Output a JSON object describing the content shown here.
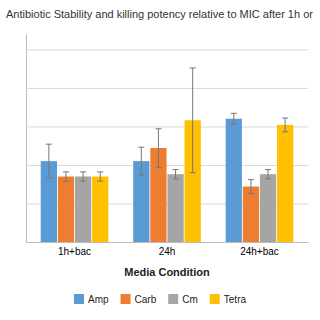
{
  "chart_data": {
    "type": "bar",
    "title": "Antibiotic Stability and killing potency relative to MIC after 1h or",
    "xlabel": "Media Condition",
    "categories": [
      "1h+bac",
      "24h",
      "24h+bac"
    ],
    "series": [
      {
        "name": "Amp",
        "color": "#5B9BD5",
        "values": [
          1.05,
          1.05,
          1.6
        ],
        "errors": [
          0.22,
          0.18,
          0.07
        ]
      },
      {
        "name": "Carb",
        "color": "#ED7D31",
        "values": [
          0.85,
          1.22,
          0.72
        ],
        "errors": [
          0.06,
          0.25,
          0.09
        ]
      },
      {
        "name": "Cm",
        "color": "#A5A5A5",
        "values": [
          0.85,
          0.88,
          0.88
        ],
        "errors": [
          0.06,
          0.06,
          0.06
        ]
      },
      {
        "name": "Tetra",
        "color": "#FFC000",
        "values": [
          0.85,
          1.58,
          1.52
        ],
        "errors": [
          0.06,
          0.68,
          0.09
        ]
      }
    ],
    "ylim": [
      0,
      2.7
    ],
    "yticks": [
      0.5,
      1.0,
      1.5,
      2.0,
      2.5
    ],
    "grid": true,
    "legend": "bottom",
    "tick_labels": "x"
  }
}
